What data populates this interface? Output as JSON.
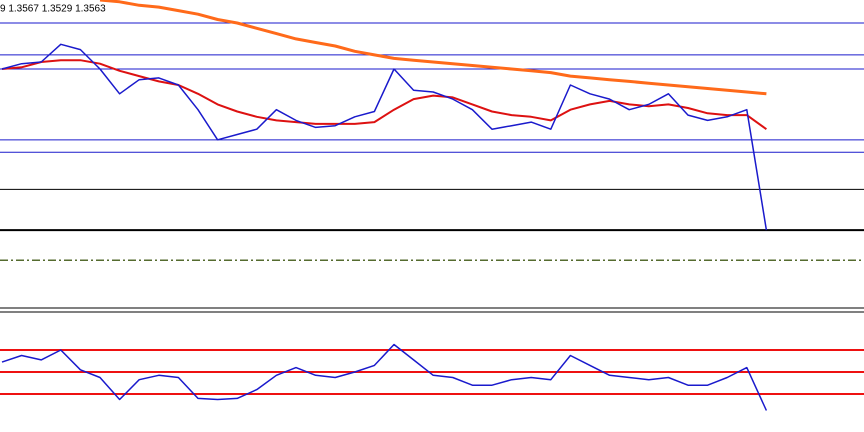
{
  "chart_data": [
    {
      "type": "line",
      "header": "9 1.3567 1.3529 1.3563",
      "ylim": [
        1.3519,
        1.3693
      ],
      "levels": [
        {
          "value": 1.368,
          "color": "#1a1acc",
          "width": 1,
          "dashed": false
        },
        {
          "value": 1.3662,
          "color": "#1a1acc",
          "width": 1,
          "dashed": false
        },
        {
          "value": 1.3654,
          "color": "#1a1acc",
          "width": 1,
          "dashed": false
        },
        {
          "value": 1.3614,
          "color": "#1a1acc",
          "width": 1,
          "dashed": false
        },
        {
          "value": 1.3607,
          "color": "#1a1acc",
          "width": 1,
          "dashed": false
        },
        {
          "value": 1.3586,
          "color": "#000000",
          "width": 1,
          "dashed": false
        },
        {
          "value": 1.3563,
          "color": "#000000",
          "width": 2,
          "dashed": false
        },
        {
          "value": 1.3546,
          "color": "#556b2f",
          "width": 1.5,
          "dashed": true
        }
      ],
      "series": [
        {
          "color": "#ff6a1a",
          "width": 3,
          "values": [
            null,
            null,
            null,
            null,
            null,
            1.3693,
            1.3692,
            1.369,
            1.3689,
            1.3687,
            1.3685,
            1.3682,
            1.368,
            1.3677,
            1.3674,
            1.3671,
            1.3669,
            1.3667,
            1.3664,
            1.3662,
            1.366,
            1.3659,
            1.3658,
            1.3657,
            1.3656,
            1.3655,
            1.3654,
            1.3653,
            1.3652,
            1.365,
            1.3649,
            1.3648,
            1.3647,
            1.3646,
            1.3645,
            1.3644,
            1.3643,
            1.3642,
            1.3641,
            1.364
          ]
        },
        {
          "color": "#dd1111",
          "width": 2,
          "values": [
            1.3654,
            1.3655,
            1.3658,
            1.3659,
            1.3659,
            1.3657,
            1.3653,
            1.365,
            1.3647,
            1.3645,
            1.364,
            1.3634,
            1.363,
            1.3627,
            1.3625,
            1.3624,
            1.3623,
            1.3623,
            1.3623,
            1.3624,
            1.3631,
            1.3637,
            1.3639,
            1.3638,
            1.3634,
            1.363,
            1.3628,
            1.3627,
            1.3625,
            1.3631,
            1.3634,
            1.3636,
            1.3634,
            1.3633,
            1.3634,
            1.3632,
            1.3629,
            1.3628,
            1.3628,
            1.362
          ]
        },
        {
          "color": "#1a1acc",
          "width": 1.5,
          "values": [
            1.3654,
            1.3657,
            1.3658,
            1.3668,
            1.3665,
            1.3654,
            1.364,
            1.3648,
            1.3649,
            1.3645,
            1.3631,
            1.3614,
            1.3617,
            1.362,
            1.3631,
            1.3625,
            1.3621,
            1.3622,
            1.3627,
            1.363,
            1.3654,
            1.3642,
            1.3641,
            1.3637,
            1.3631,
            1.362,
            1.3622,
            1.3624,
            1.362,
            1.3645,
            1.364,
            1.3637,
            1.3631,
            1.3634,
            1.364,
            1.3628,
            1.3625,
            1.3627,
            1.3631,
            1.3563
          ]
        }
      ]
    },
    {
      "type": "line",
      "ylim": [
        0,
        100
      ],
      "levels": [
        {
          "value": 70,
          "color": "#ee1111",
          "width": 2,
          "dashed": false
        },
        {
          "value": 50,
          "color": "#ee1111",
          "width": 2,
          "dashed": false
        },
        {
          "value": 30,
          "color": "#ee1111",
          "width": 2,
          "dashed": false
        }
      ],
      "series": [
        {
          "color": "#1a1acc",
          "width": 1.5,
          "values": [
            59,
            65,
            61,
            70,
            52,
            45,
            25,
            43,
            47,
            45,
            26,
            25,
            26,
            34,
            47,
            54,
            47,
            45,
            50,
            56,
            75,
            61,
            47,
            45,
            38,
            38,
            43,
            45,
            43,
            65,
            56,
            47,
            45,
            43,
            45,
            38,
            38,
            45,
            54,
            15
          ]
        }
      ]
    }
  ]
}
